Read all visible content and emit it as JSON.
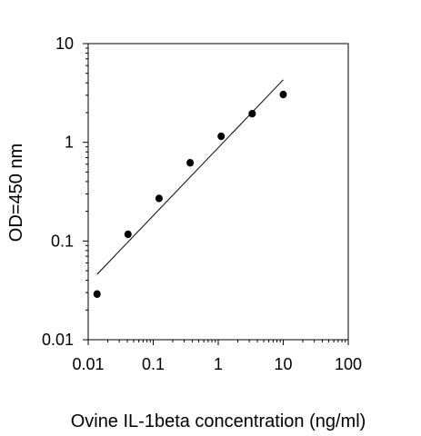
{
  "chart_data": {
    "type": "scatter",
    "title": "",
    "xlabel": "Ovine IL-1beta concentration (ng/ml)",
    "ylabel": "OD=450 nm",
    "x_scale": "log",
    "y_scale": "log",
    "xlim": [
      0.01,
      100
    ],
    "ylim": [
      0.01,
      10
    ],
    "x_ticks": [
      "0.01",
      "0.1",
      "1",
      "10",
      "100"
    ],
    "y_ticks": [
      "0.01",
      "0.1",
      "1",
      "10"
    ],
    "grid": false,
    "legend": "none",
    "points": [
      {
        "x": 0.0137,
        "y": 0.029
      },
      {
        "x": 0.041,
        "y": 0.117
      },
      {
        "x": 0.123,
        "y": 0.27
      },
      {
        "x": 0.37,
        "y": 0.62
      },
      {
        "x": 1.11,
        "y": 1.15
      },
      {
        "x": 3.33,
        "y": 1.95
      },
      {
        "x": 10,
        "y": 3.05
      }
    ],
    "fit_line": {
      "x": [
        0.0137,
        10
      ],
      "y": [
        0.046,
        4.3
      ]
    },
    "colors": {
      "points": "#000000",
      "line": "#000000",
      "axes": "#000000"
    }
  }
}
